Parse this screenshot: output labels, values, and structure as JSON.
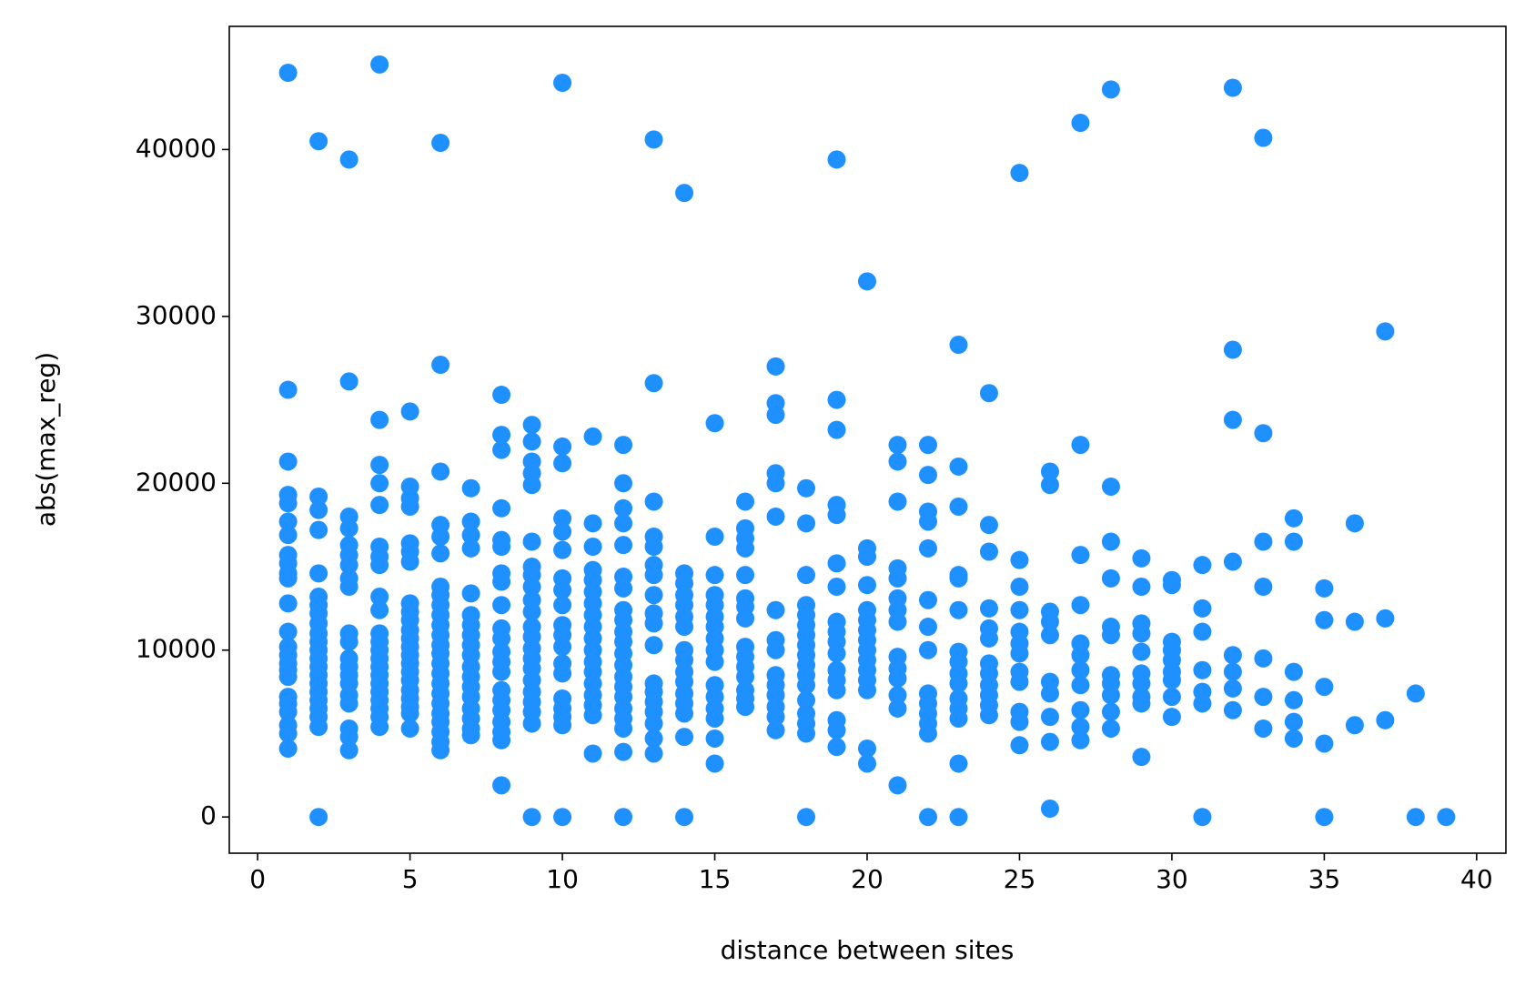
{
  "chart_data": {
    "type": "scatter",
    "x_label": "distance between sites",
    "y_label": "abs(max_reg)",
    "color": "#1e90ff",
    "xlim": [
      -0.93,
      40.96
    ],
    "ylim": [
      -2170,
      47380
    ],
    "xticks": [
      0,
      5,
      10,
      15,
      20,
      25,
      30,
      35,
      40
    ],
    "yticks": [
      0,
      10000,
      20000,
      30000,
      40000
    ],
    "x": [
      1,
      1,
      1,
      1,
      1,
      1,
      1,
      1,
      1,
      1,
      1,
      1,
      1,
      1,
      1,
      1,
      1,
      1,
      1,
      1,
      1,
      1,
      1,
      1,
      2,
      2,
      2,
      2,
      2,
      2,
      2,
      2,
      2,
      2,
      2,
      2,
      2,
      2,
      2,
      2,
      2,
      2,
      2,
      2,
      2,
      2,
      3,
      3,
      3,
      3,
      3,
      3,
      3,
      3,
      3,
      3,
      3,
      3,
      3,
      3,
      3,
      3,
      3,
      3,
      3,
      3,
      4,
      4,
      4,
      4,
      4,
      4,
      4,
      4,
      4,
      4,
      4,
      4,
      4,
      4,
      4,
      4,
      4,
      4,
      4,
      4,
      4,
      4,
      5,
      5,
      5,
      5,
      5,
      5,
      5,
      5,
      5,
      5,
      5,
      5,
      5,
      5,
      5,
      5,
      5,
      5,
      5,
      5,
      5,
      5,
      6,
      6,
      6,
      6,
      6,
      6,
      6,
      6,
      6,
      6,
      6,
      6,
      6,
      6,
      6,
      6,
      6,
      6,
      6,
      6,
      6,
      6,
      6,
      6,
      7,
      7,
      7,
      7,
      7,
      7,
      7,
      7,
      7,
      7,
      7,
      7,
      7,
      7,
      7,
      7,
      7,
      7,
      8,
      8,
      8,
      8,
      8,
      8,
      8,
      8,
      8,
      8,
      8,
      8,
      8,
      8,
      8,
      8,
      8,
      8,
      8,
      8,
      8,
      9,
      9,
      9,
      9,
      9,
      9,
      9,
      9,
      9,
      9,
      9,
      9,
      9,
      9,
      9,
      9,
      9,
      9,
      9,
      9,
      9,
      9,
      10,
      10,
      10,
      10,
      10,
      10,
      10,
      10,
      10,
      10,
      10,
      10,
      10,
      10,
      10,
      10,
      10,
      10,
      10,
      11,
      11,
      11,
      11,
      11,
      11,
      11,
      11,
      11,
      11,
      11,
      11,
      11,
      11,
      11,
      11,
      11,
      11,
      12,
      12,
      12,
      12,
      12,
      12,
      12,
      12,
      12,
      12,
      12,
      12,
      12,
      12,
      12,
      12,
      12,
      12,
      12,
      12,
      12,
      13,
      13,
      13,
      13,
      13,
      13,
      13,
      13,
      13,
      13,
      13,
      13,
      13,
      13,
      13,
      13,
      13,
      13,
      14,
      14,
      14,
      14,
      14,
      14,
      14,
      14,
      14,
      14,
      14,
      14,
      14,
      14,
      14,
      14,
      15,
      15,
      15,
      15,
      15,
      15,
      15,
      15,
      15,
      15,
      15,
      15,
      15,
      15,
      15,
      15,
      16,
      16,
      16,
      16,
      16,
      16,
      16,
      16,
      16,
      16,
      16,
      16,
      16,
      16,
      16,
      17,
      17,
      17,
      17,
      17,
      17,
      17,
      17,
      17,
      17,
      17,
      17,
      17,
      17,
      17,
      18,
      18,
      18,
      18,
      18,
      18,
      18,
      18,
      18,
      18,
      18,
      18,
      18,
      18,
      18,
      18,
      18,
      19,
      19,
      19,
      19,
      19,
      19,
      19,
      19,
      19,
      19,
      19,
      19,
      19,
      19,
      19,
      19,
      19,
      20,
      20,
      20,
      20,
      20,
      20,
      20,
      20,
      20,
      20,
      20,
      20,
      20,
      20,
      20,
      21,
      21,
      21,
      21,
      21,
      21,
      21,
      21,
      21,
      21,
      21,
      21,
      21,
      21,
      22,
      22,
      22,
      22,
      22,
      22,
      22,
      22,
      22,
      22,
      22,
      22,
      22,
      22,
      23,
      23,
      23,
      23,
      23,
      23,
      23,
      23,
      23,
      23,
      23,
      23,
      23,
      23,
      23,
      24,
      24,
      24,
      24,
      24,
      24,
      24,
      24,
      24,
      24,
      24,
      24,
      25,
      25,
      25,
      25,
      25,
      25,
      25,
      25,
      25,
      25,
      25,
      25,
      26,
      26,
      26,
      26,
      26,
      26,
      26,
      26,
      26,
      26,
      27,
      27,
      27,
      27,
      27,
      27,
      27,
      27,
      27,
      27,
      27,
      28,
      28,
      28,
      28,
      28,
      28,
      28,
      28,
      28,
      28,
      28,
      29,
      29,
      29,
      29,
      29,
      29,
      29,
      29,
      29,
      29,
      30,
      30,
      30,
      30,
      30,
      30,
      30,
      30,
      30,
      31,
      31,
      31,
      31,
      31,
      31,
      31,
      32,
      32,
      32,
      32,
      32,
      32,
      32,
      32,
      33,
      33,
      33,
      33,
      33,
      33,
      33,
      34,
      34,
      34,
      34,
      34,
      34,
      35,
      35,
      35,
      35,
      35,
      36,
      36,
      36,
      37,
      37,
      37,
      38,
      38,
      39
    ],
    "values": [
      44600,
      25600,
      21300,
      19300,
      18800,
      17700,
      16900,
      15700,
      15200,
      14600,
      14300,
      12800,
      11100,
      10200,
      9700,
      9200,
      8800,
      8400,
      7200,
      6800,
      6300,
      5500,
      5000,
      4100,
      40500,
      19200,
      18400,
      17200,
      14600,
      13200,
      12700,
      12200,
      11600,
      11000,
      10500,
      10000,
      9500,
      9000,
      8500,
      8000,
      7500,
      7000,
      6500,
      6000,
      5400,
      0,
      39400,
      26100,
      18000,
      17300,
      16300,
      15700,
      15100,
      14300,
      13800,
      11000,
      10500,
      9500,
      9000,
      8500,
      8000,
      7300,
      6800,
      5300,
      4800,
      4000,
      45100,
      23800,
      21100,
      20000,
      18700,
      16200,
      15600,
      15100,
      13200,
      12400,
      11000,
      10500,
      10000,
      9500,
      9000,
      8500,
      8000,
      7500,
      7000,
      6500,
      6000,
      5400,
      24300,
      19800,
      19100,
      18600,
      16400,
      15900,
      15300,
      12800,
      12300,
      11800,
      11200,
      10700,
      10200,
      9700,
      9200,
      8700,
      8200,
      7600,
      7100,
      6600,
      6200,
      5300,
      40400,
      27100,
      20700,
      17500,
      16800,
      15800,
      13800,
      13300,
      12700,
      12100,
      11500,
      10900,
      10300,
      9800,
      9200,
      8600,
      8000,
      7400,
      6800,
      6200,
      5700,
      5100,
      4500,
      4000,
      19700,
      17700,
      16900,
      16100,
      13400,
      12100,
      11500,
      10900,
      10300,
      9700,
      9000,
      8400,
      7800,
      7200,
      6500,
      5900,
      5300,
      4900,
      25300,
      22900,
      22000,
      18500,
      16600,
      16200,
      14600,
      14100,
      12700,
      11300,
      10700,
      9900,
      9300,
      8700,
      7600,
      7000,
      6400,
      5700,
      5100,
      4600,
      1900,
      23500,
      22500,
      21300,
      20600,
      19900,
      16500,
      15000,
      14500,
      13800,
      13000,
      12300,
      11400,
      10800,
      10100,
      9500,
      8900,
      8200,
      7500,
      6900,
      6300,
      5600,
      0,
      44000,
      22200,
      21200,
      17900,
      17100,
      16000,
      14300,
      13600,
      12700,
      11500,
      10900,
      10200,
      9200,
      8600,
      7100,
      6500,
      6000,
      5500,
      0,
      22800,
      17600,
      16200,
      14800,
      14200,
      13500,
      12800,
      12100,
      11400,
      10700,
      10000,
      9300,
      8700,
      8000,
      7300,
      6700,
      6100,
      3800,
      22300,
      20000,
      18500,
      17600,
      16300,
      14400,
      13700,
      12400,
      11800,
      11100,
      10500,
      9800,
      9100,
      8400,
      7800,
      7200,
      6500,
      5900,
      5300,
      3900,
      0,
      40600,
      26000,
      18900,
      16800,
      16200,
      15100,
      14500,
      13300,
      12200,
      11600,
      10300,
      8000,
      7500,
      6900,
      6300,
      5600,
      4700,
      3800,
      37400,
      14600,
      14000,
      13300,
      12700,
      12000,
      11400,
      10000,
      9400,
      8700,
      8100,
      7400,
      6800,
      6200,
      4800,
      0,
      23600,
      16800,
      14500,
      13300,
      12700,
      12000,
      11400,
      10700,
      10000,
      9300,
      7900,
      7200,
      6500,
      5900,
      4700,
      3200,
      18900,
      17300,
      16700,
      16100,
      14500,
      13100,
      12600,
      11900,
      10200,
      9600,
      9000,
      8400,
      7600,
      7100,
      6600,
      27000,
      24800,
      24100,
      20600,
      20000,
      18000,
      12400,
      10600,
      10000,
      8500,
      7900,
      7300,
      6600,
      6000,
      5200,
      19700,
      17600,
      14500,
      12700,
      12100,
      11500,
      10900,
      10300,
      9700,
      9100,
      8500,
      7900,
      7000,
      6200,
      5600,
      5000,
      0,
      39400,
      25000,
      23200,
      18700,
      18100,
      15200,
      13800,
      11700,
      11100,
      10500,
      9800,
      8800,
      8200,
      7600,
      5800,
      5200,
      4200,
      32100,
      16100,
      15600,
      13900,
      12400,
      11800,
      11200,
      10600,
      10000,
      9400,
      8800,
      8200,
      7600,
      4100,
      3200,
      22300,
      21300,
      18900,
      14900,
      14300,
      13100,
      12400,
      11700,
      9600,
      8900,
      8300,
      7300,
      6500,
      1900,
      22300,
      20500,
      18300,
      17700,
      16100,
      13000,
      11400,
      10000,
      7400,
      6800,
      6200,
      5600,
      5000,
      0,
      28300,
      21000,
      18600,
      14500,
      14300,
      12400,
      9900,
      9300,
      8600,
      8000,
      7100,
      6500,
      5900,
      3200,
      0,
      25400,
      17500,
      15900,
      12500,
      11300,
      10700,
      9200,
      8600,
      7900,
      7300,
      6700,
      6100,
      38600,
      15400,
      13800,
      12400,
      11100,
      10400,
      9800,
      8700,
      8100,
      6300,
      5700,
      4300,
      20700,
      19900,
      12300,
      11700,
      10900,
      8100,
      7400,
      6000,
      4500,
      500,
      41600,
      22300,
      15700,
      12700,
      10400,
      9700,
      8800,
      7900,
      6400,
      5400,
      4600,
      43600,
      19800,
      16500,
      14300,
      11400,
      10900,
      8500,
      8000,
      7300,
      6300,
      5300,
      15500,
      13800,
      11600,
      11000,
      9900,
      8600,
      8000,
      7200,
      6800,
      3600,
      14200,
      13900,
      10500,
      10000,
      9400,
      8700,
      8200,
      7200,
      6000,
      15100,
      12500,
      11100,
      8800,
      7500,
      6800,
      0,
      43700,
      28000,
      23800,
      15300,
      9700,
      8700,
      7700,
      6400,
      40700,
      23000,
      16500,
      13800,
      9500,
      7200,
      5300,
      17900,
      16500,
      8700,
      7000,
      5700,
      4700,
      13700,
      11800,
      7800,
      4400,
      0,
      17600,
      11700,
      5500,
      29100,
      11900,
      5800,
      7400,
      0,
      0
    ]
  }
}
